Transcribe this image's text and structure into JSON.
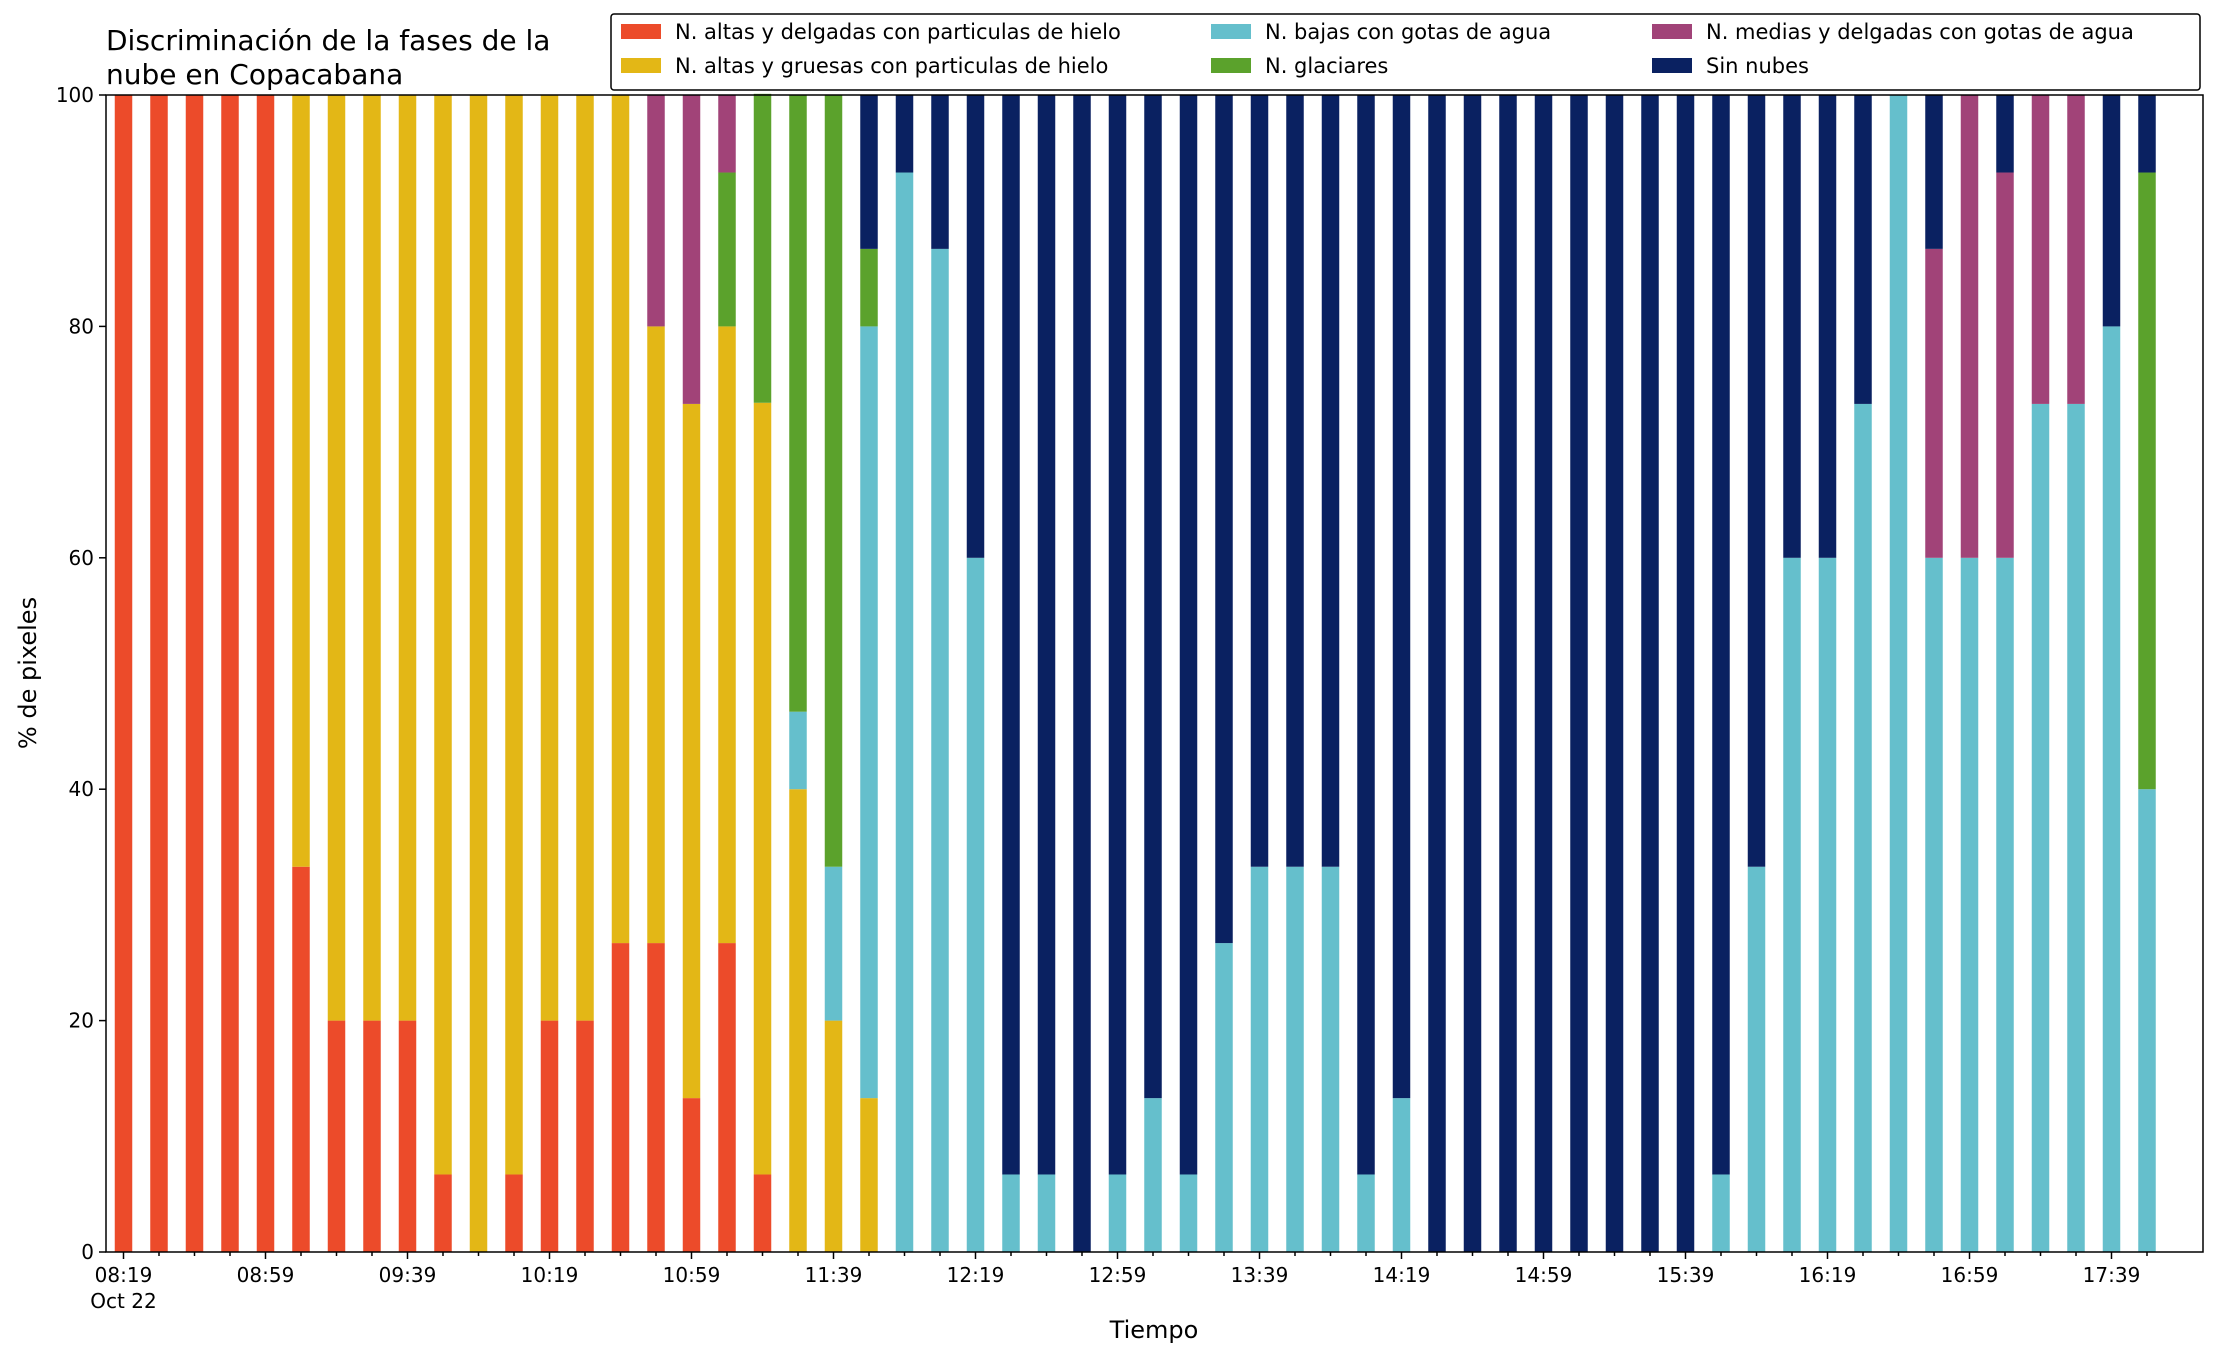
{
  "chart_data": {
    "type": "bar",
    "stacked": true,
    "title": "Discriminación de la fases de la nube en Copacabana",
    "title_lines": [
      "Discriminación de la fases de la",
      "nube en Copacabana"
    ],
    "xlabel": "Tiempo",
    "ylabel": "% de pixeles",
    "ylim": [
      0,
      100
    ],
    "yticks": [
      0,
      20,
      40,
      60,
      80,
      100
    ],
    "grid": false,
    "legend_position": "top-right",
    "x_start_time": "08:19",
    "x_step_minutes": 10,
    "x_first_tick_sublabel": "Oct 22",
    "xtick_labels": [
      "08:19",
      "08:59",
      "09:39",
      "10:19",
      "10:59",
      "11:39",
      "12:19",
      "12:59",
      "13:39",
      "14:19",
      "14:59",
      "15:39",
      "16:19",
      "16:59",
      "17:39"
    ],
    "categories": [
      "08:19",
      "08:29",
      "08:39",
      "08:49",
      "08:59",
      "09:09",
      "09:19",
      "09:29",
      "09:39",
      "09:49",
      "09:59",
      "10:09",
      "10:19",
      "10:29",
      "10:39",
      "10:49",
      "10:59",
      "11:09",
      "11:19",
      "11:29",
      "11:39",
      "11:49",
      "11:59",
      "12:09",
      "12:19",
      "12:29",
      "12:39",
      "12:49",
      "12:59",
      "13:09",
      "13:19",
      "13:29",
      "13:39",
      "13:49",
      "13:59",
      "14:09",
      "14:19",
      "14:29",
      "14:39",
      "14:49",
      "14:59",
      "15:09",
      "15:19",
      "15:29",
      "15:39",
      "15:49",
      "15:59",
      "16:09",
      "16:19",
      "16:29",
      "16:39",
      "16:49",
      "16:59",
      "17:09",
      "17:19",
      "17:29",
      "17:39",
      "17:49"
    ],
    "series": [
      {
        "name": "N. altas y delgadas con particulas de hielo",
        "color": "#ec4b2a",
        "values": [
          100,
          100,
          100,
          100,
          100,
          33.3,
          20,
          20,
          20,
          6.7,
          0,
          6.7,
          20,
          20,
          26.7,
          26.7,
          13.3,
          26.7,
          6.7,
          0,
          0,
          0,
          0,
          0,
          0,
          0,
          0,
          0,
          0,
          0,
          0,
          0,
          0,
          0,
          0,
          0,
          0,
          0,
          0,
          0,
          0,
          0,
          0,
          0,
          0,
          0,
          0,
          0,
          0,
          0,
          0,
          0,
          0,
          0,
          0,
          0,
          0,
          0
        ]
      },
      {
        "name": "N. altas y gruesas con particulas de hielo",
        "color": "#e3b716",
        "values": [
          0,
          0,
          0,
          0,
          0,
          66.7,
          80,
          80,
          80,
          93.3,
          100,
          93.3,
          80,
          80,
          73.3,
          53.3,
          60,
          53.3,
          66.7,
          40,
          20,
          13.3,
          0,
          0,
          0,
          0,
          0,
          0,
          0,
          0,
          0,
          0,
          0,
          0,
          0,
          0,
          0,
          0,
          0,
          0,
          0,
          0,
          0,
          0,
          0,
          0,
          0,
          0,
          0,
          0,
          0,
          0,
          0,
          0,
          0,
          0,
          0,
          0
        ]
      },
      {
        "name": "N. bajas con gotas de agua",
        "color": "#65bfcc",
        "values": [
          0,
          0,
          0,
          0,
          0,
          0,
          0,
          0,
          0,
          0,
          0,
          0,
          0,
          0,
          0,
          0,
          0,
          0,
          0,
          6.7,
          13.3,
          66.7,
          93.3,
          86.7,
          60,
          6.7,
          6.7,
          0,
          6.7,
          13.3,
          6.7,
          26.7,
          33.3,
          33.3,
          33.3,
          6.7,
          13.3,
          0,
          0,
          0,
          0,
          0,
          0,
          0,
          0,
          6.7,
          33.3,
          60,
          60,
          73.3,
          100,
          60,
          60,
          60,
          73.3,
          73.3,
          80,
          40
        ]
      },
      {
        "name": "N. glaciares",
        "color": "#5ba22c",
        "values": [
          0,
          0,
          0,
          0,
          0,
          0,
          0,
          0,
          0,
          0,
          0,
          0,
          0,
          0,
          0,
          0,
          0,
          13.3,
          26.7,
          53.3,
          66.7,
          6.7,
          0,
          0,
          0,
          0,
          0,
          0,
          0,
          0,
          0,
          0,
          0,
          0,
          0,
          0,
          0,
          0,
          0,
          0,
          0,
          0,
          0,
          0,
          0,
          0,
          0,
          0,
          0,
          0,
          0,
          0,
          0,
          0,
          0,
          0,
          0,
          53.3
        ]
      },
      {
        "name": "N. medias y delgadas con gotas de agua",
        "color": "#a14378",
        "values": [
          0,
          0,
          0,
          0,
          0,
          0,
          0,
          0,
          0,
          0,
          0,
          0,
          0,
          0,
          0,
          20,
          26.7,
          6.7,
          0,
          0,
          0,
          0,
          0,
          0,
          0,
          0,
          0,
          0,
          0,
          0,
          0,
          0,
          0,
          0,
          0,
          0,
          0,
          0,
          0,
          0,
          0,
          0,
          0,
          0,
          0,
          0,
          0,
          0,
          0,
          0,
          0,
          26.7,
          40,
          33.3,
          26.7,
          26.7,
          0,
          0
        ]
      },
      {
        "name": "Sin nubes",
        "color": "#0a2161",
        "values": [
          0,
          0,
          0,
          0,
          0,
          0,
          0,
          0,
          0,
          0,
          0,
          0,
          0,
          0,
          0,
          0,
          0,
          0,
          0,
          0,
          0,
          13.3,
          6.7,
          13.3,
          40,
          93.3,
          93.3,
          100,
          93.3,
          86.7,
          93.3,
          73.3,
          66.7,
          66.7,
          66.7,
          93.3,
          86.7,
          100,
          100,
          100,
          100,
          100,
          100,
          100,
          100,
          93.3,
          66.7,
          40,
          40,
          26.7,
          0,
          13.3,
          0,
          6.7,
          0,
          0,
          20,
          6.7
        ]
      }
    ]
  }
}
